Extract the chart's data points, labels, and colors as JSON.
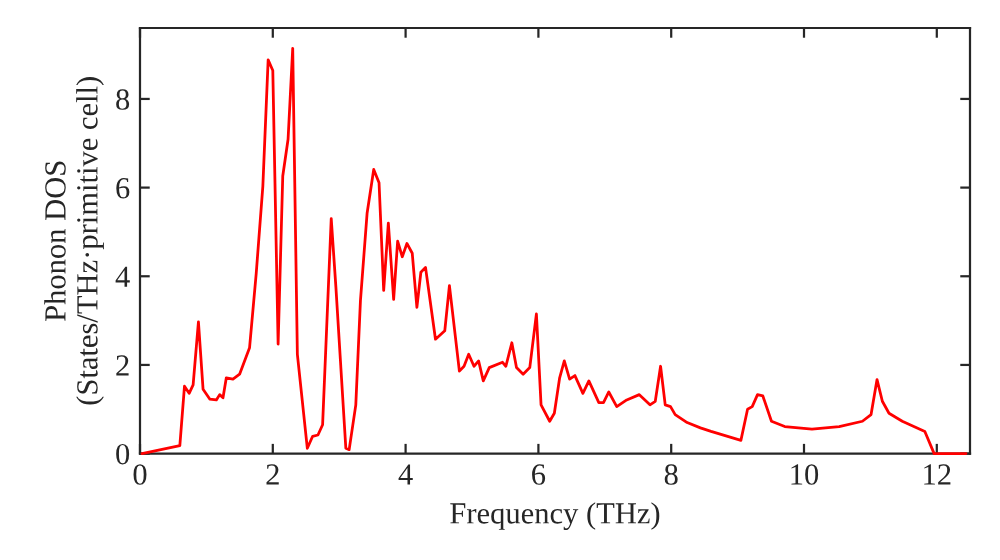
{
  "chart_data": {
    "type": "line",
    "xlabel": "Frequency (THz)",
    "ylabel": "Phonon DOS\n(States/THz·primitive cell)",
    "xlim": [
      0,
      12.5
    ],
    "ylim": [
      0,
      9.6
    ],
    "xticks": [
      0,
      2,
      4,
      6,
      8,
      10,
      12
    ],
    "yticks": [
      0,
      2,
      4,
      6,
      8
    ],
    "grid": false,
    "marker": "none",
    "line_style": "solid",
    "series": [
      {
        "color": "#ff0000",
        "x": [
          0.03,
          0.6,
          0.67,
          0.74,
          0.8,
          0.88,
          0.95,
          1.05,
          1.15,
          1.2,
          1.25,
          1.3,
          1.4,
          1.5,
          1.65,
          1.75,
          1.85,
          1.93,
          2.0,
          2.08,
          2.15,
          2.23,
          2.3,
          2.37,
          2.52,
          2.6,
          2.68,
          2.75,
          2.88,
          2.95,
          3.1,
          3.15,
          3.25,
          3.32,
          3.42,
          3.52,
          3.6,
          3.67,
          3.74,
          3.82,
          3.88,
          3.95,
          4.02,
          4.1,
          4.17,
          4.23,
          4.3,
          4.45,
          4.59,
          4.66,
          4.81,
          4.88,
          4.95,
          5.03,
          5.1,
          5.17,
          5.26,
          5.46,
          5.51,
          5.6,
          5.67,
          5.77,
          5.87,
          5.97,
          6.04,
          6.17,
          6.24,
          6.32,
          6.39,
          6.47,
          6.55,
          6.67,
          6.76,
          6.91,
          6.98,
          7.06,
          7.18,
          7.33,
          7.52,
          7.68,
          7.76,
          7.84,
          7.91,
          7.99,
          8.06,
          8.24,
          8.44,
          8.6,
          9.05,
          9.15,
          9.22,
          9.3,
          9.38,
          9.51,
          9.71,
          10.12,
          10.53,
          10.88,
          11.01,
          11.1,
          11.18,
          11.28,
          11.48,
          11.82,
          11.96,
          12.44
        ],
        "values": [
          0,
          0.18,
          1.52,
          1.36,
          1.55,
          2.97,
          1.45,
          1.23,
          1.21,
          1.33,
          1.26,
          1.71,
          1.68,
          1.79,
          2.39,
          4.06,
          6.03,
          8.88,
          8.64,
          2.47,
          6.26,
          7.09,
          9.14,
          2.24,
          0.12,
          0.39,
          0.42,
          0.65,
          5.3,
          3.76,
          0.12,
          0.09,
          1.1,
          3.45,
          5.42,
          6.41,
          6.11,
          3.68,
          5.2,
          3.48,
          4.79,
          4.44,
          4.74,
          4.52,
          3.3,
          4.09,
          4.2,
          2.58,
          2.77,
          3.79,
          1.86,
          1.97,
          2.24,
          1.97,
          2.09,
          1.64,
          1.94,
          2.06,
          1.97,
          2.5,
          1.94,
          1.79,
          1.94,
          3.15,
          1.1,
          0.73,
          0.91,
          1.71,
          2.09,
          1.68,
          1.76,
          1.36,
          1.64,
          1.15,
          1.15,
          1.39,
          1.06,
          1.21,
          1.33,
          1.1,
          1.18,
          1.97,
          1.1,
          1.06,
          0.88,
          0.7,
          0.58,
          0.5,
          0.3,
          1.0,
          1.06,
          1.33,
          1.3,
          0.73,
          0.61,
          0.55,
          0.61,
          0.73,
          0.88,
          1.67,
          1.18,
          0.91,
          0.73,
          0.5,
          0,
          0
        ]
      }
    ]
  }
}
